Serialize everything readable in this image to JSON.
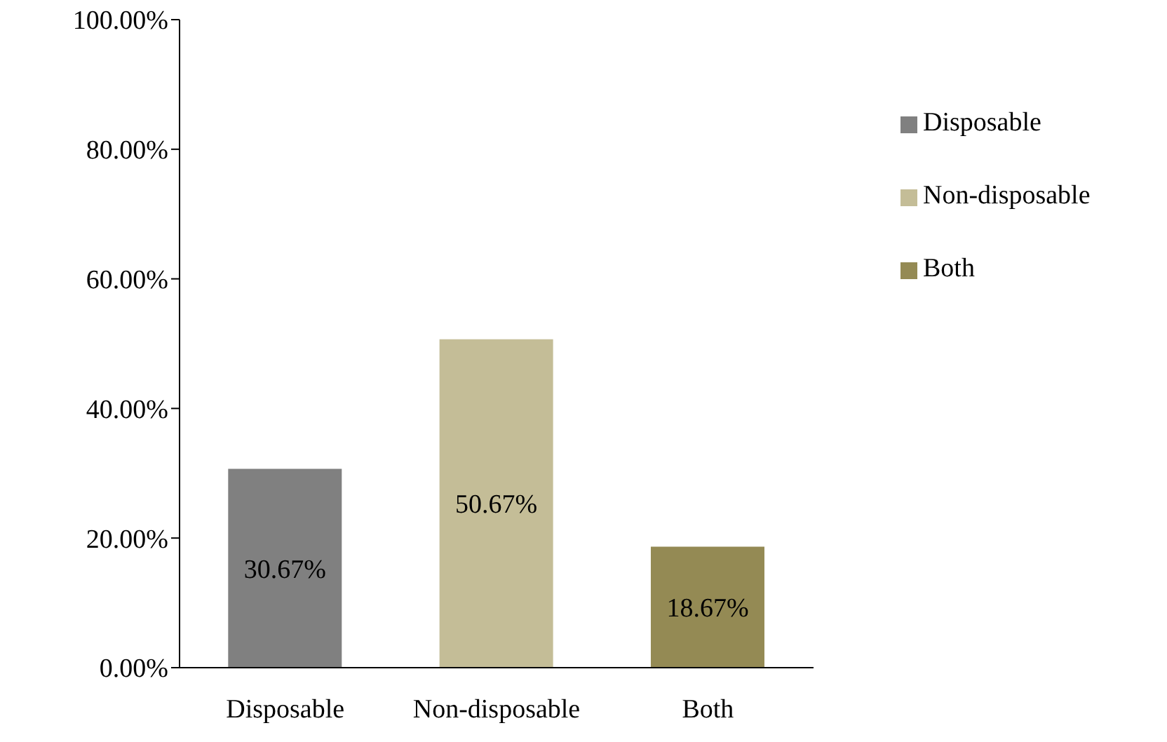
{
  "chart_data": {
    "type": "bar",
    "stacked": true,
    "categories": [
      "Disposable",
      "Non-disposable",
      "Both"
    ],
    "series": [
      {
        "name": "Disposable",
        "color": "#808080",
        "values": [
          30.67,
          null,
          null
        ],
        "value_labels": [
          "30.67%",
          null,
          null
        ]
      },
      {
        "name": "Non-disposable",
        "color": "#c4bd97",
        "values": [
          null,
          50.67,
          null
        ],
        "value_labels": [
          null,
          "50.67%",
          null
        ]
      },
      {
        "name": "Both",
        "color": "#948a54",
        "values": [
          null,
          null,
          18.67
        ],
        "value_labels": [
          null,
          null,
          "18.67%"
        ]
      }
    ],
    "ylim": [
      0,
      100
    ],
    "yticks": [
      {
        "value": 0,
        "label": "0.00%"
      },
      {
        "value": 20,
        "label": "20.00%"
      },
      {
        "value": 40,
        "label": "40.00%"
      },
      {
        "value": 60,
        "label": "60.00%"
      },
      {
        "value": 80,
        "label": "80.00%"
      },
      {
        "value": 100,
        "label": "100.00%"
      }
    ],
    "legend": "right"
  }
}
